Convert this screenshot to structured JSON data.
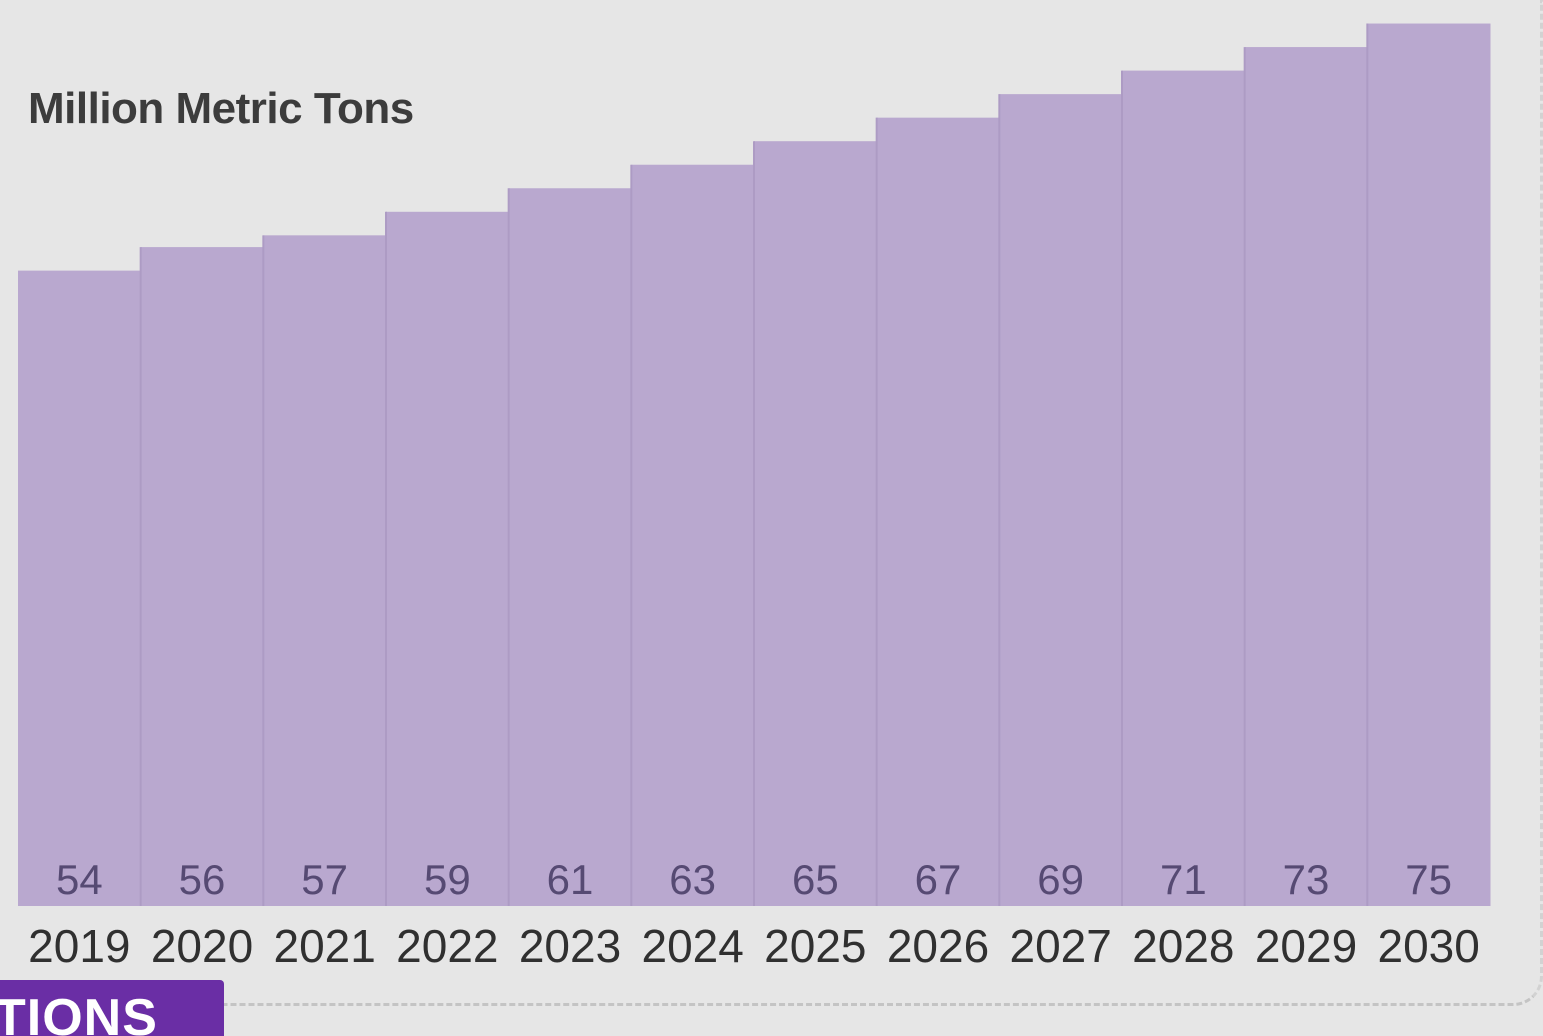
{
  "chart_data": {
    "type": "bar",
    "title": "",
    "ylabel": "Million Metric Tons",
    "xlabel": "",
    "categories": [
      "2019",
      "2020",
      "2021",
      "2022",
      "2023",
      "2024",
      "2025",
      "2026",
      "2027",
      "2028",
      "2029",
      "2030"
    ],
    "values": [
      54,
      56,
      57,
      59,
      61,
      63,
      65,
      67,
      69,
      71,
      73,
      75
    ],
    "ylim": [
      0,
      77
    ],
    "grid": false,
    "bar_color": "#b9a8cf",
    "value_label_color": "#564a73"
  },
  "badge": {
    "label": "TIONS",
    "color": "#6a2ea5"
  }
}
